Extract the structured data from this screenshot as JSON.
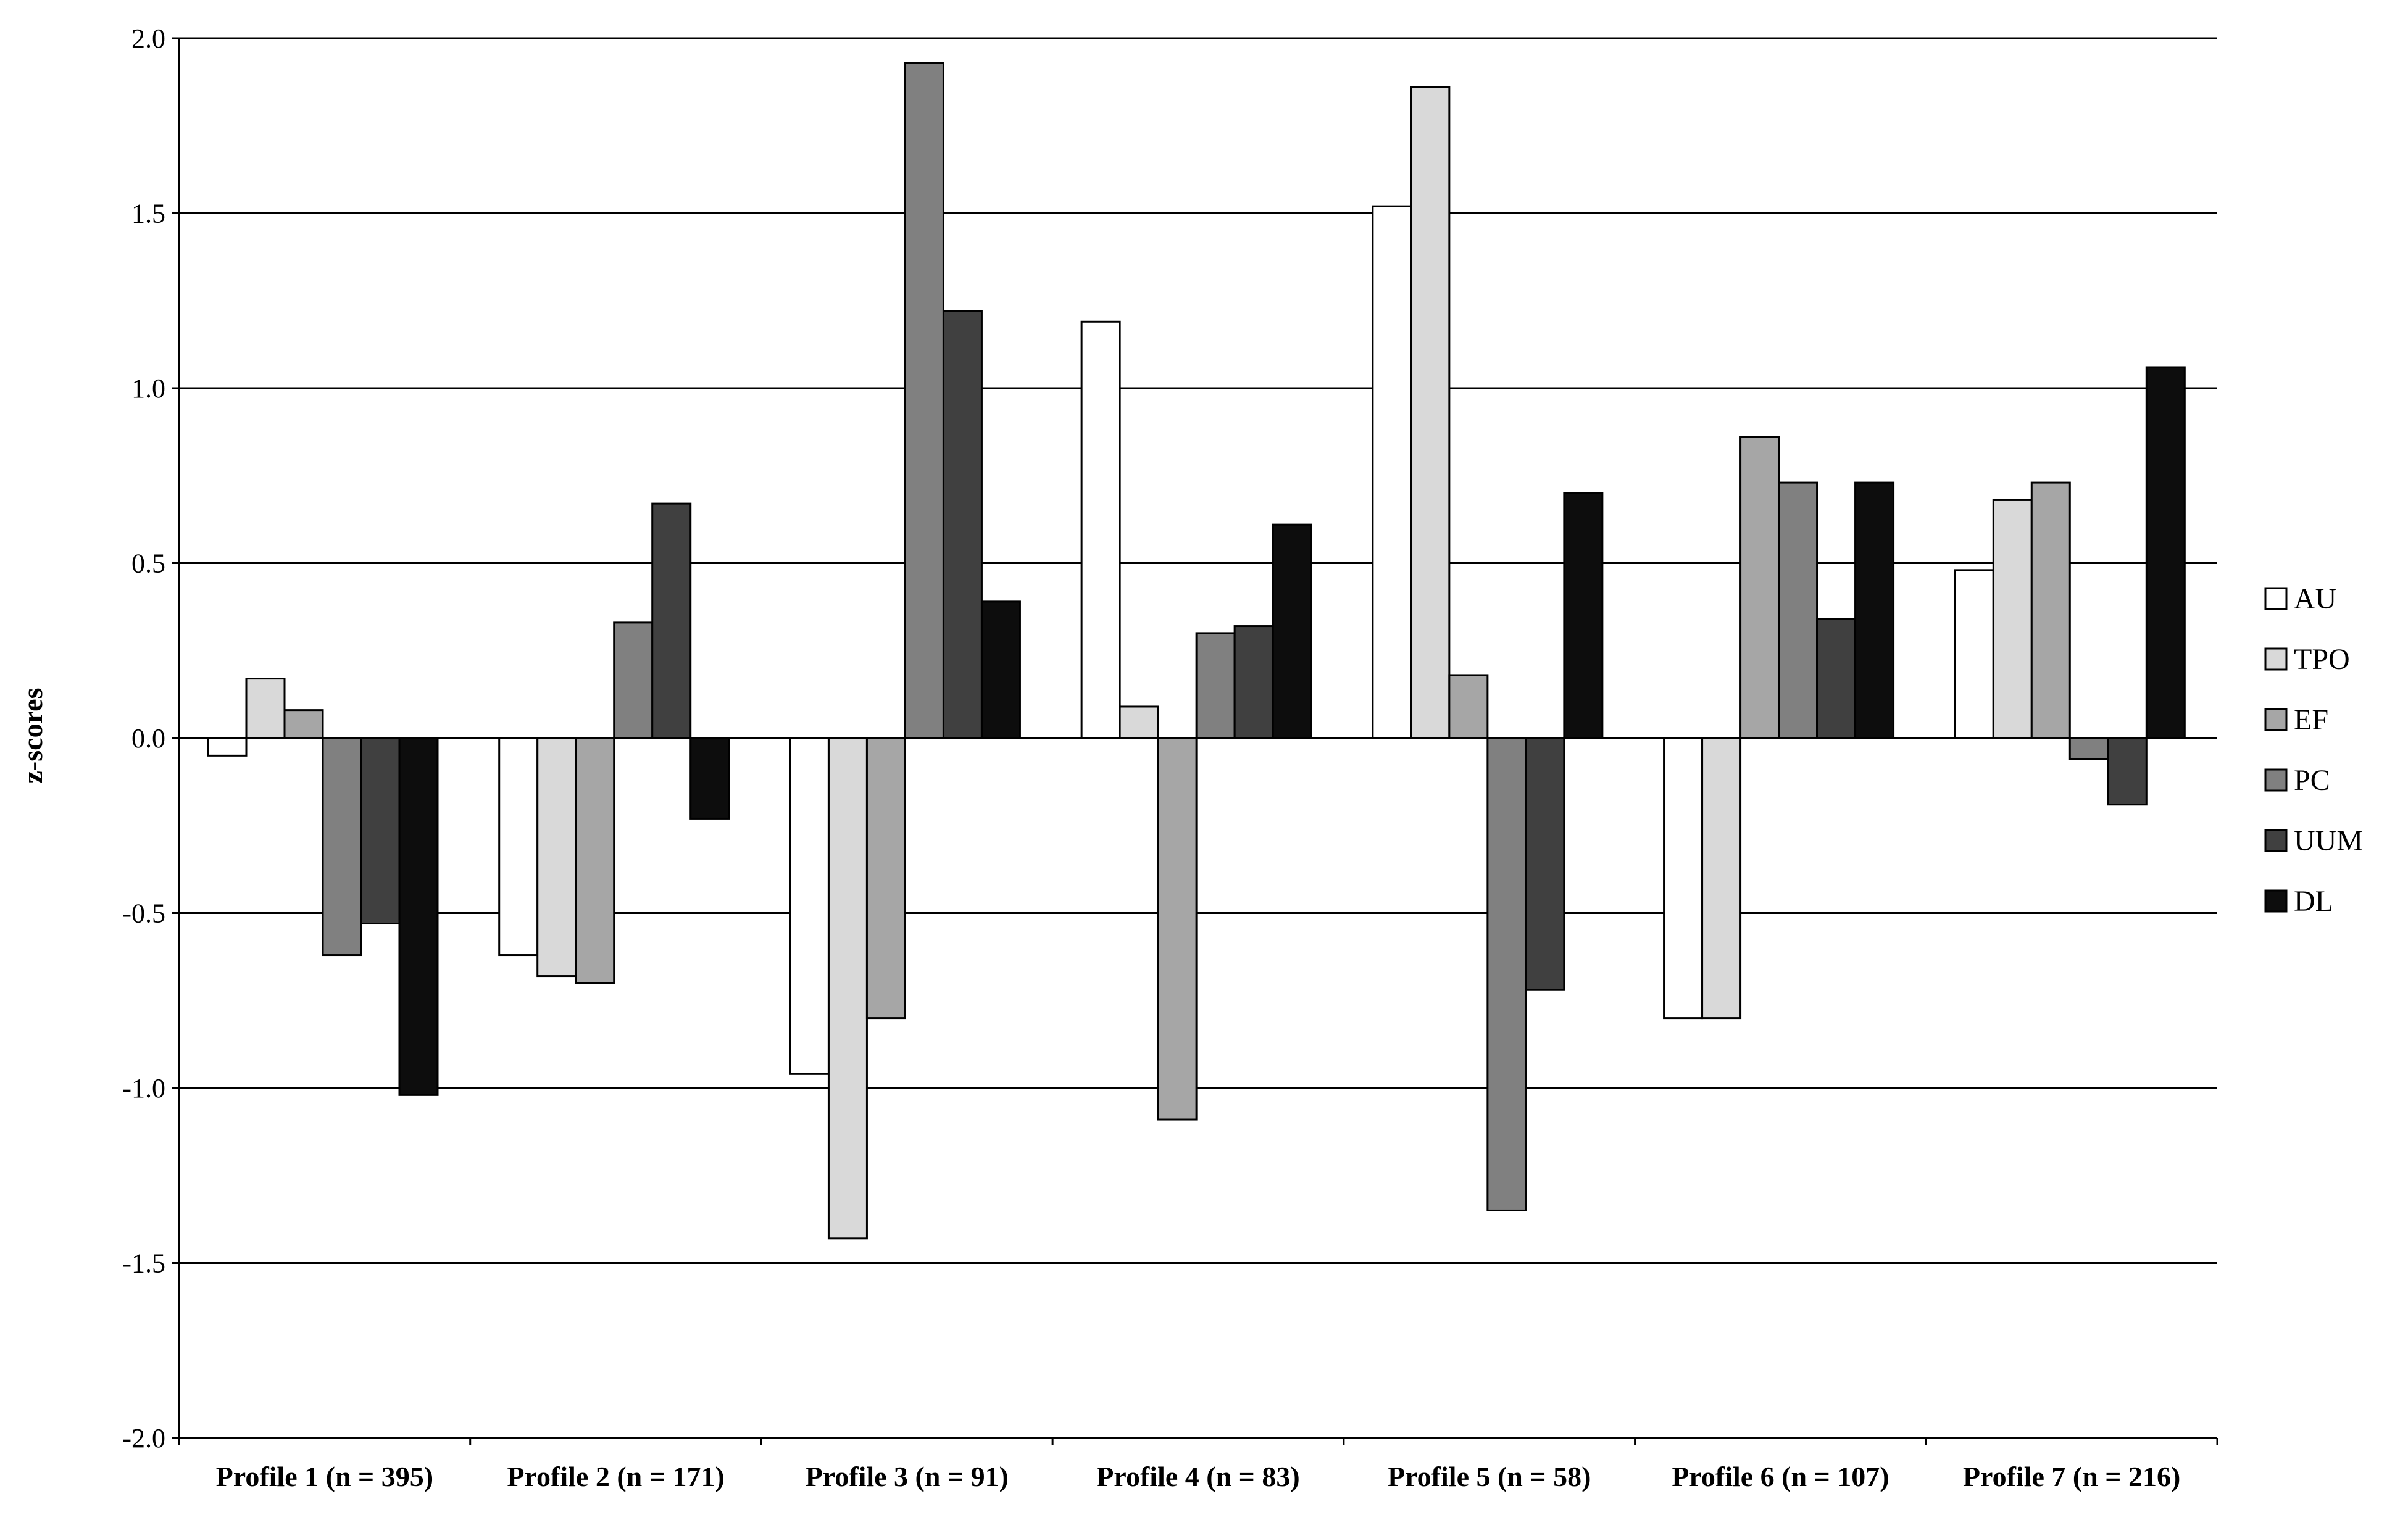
{
  "chart_data": {
    "type": "bar",
    "title": "",
    "xlabel": "",
    "ylabel": "z-scores",
    "ylim": [
      -2.0,
      2.0
    ],
    "yticks": [
      "2.0",
      "1.5",
      "1.0",
      "0.5",
      "0.0",
      "-0.5",
      "-1.0",
      "-1.5",
      "-2.0"
    ],
    "ytick_values": [
      2.0,
      1.5,
      1.0,
      0.5,
      0.0,
      -0.5,
      -1.0,
      -1.5,
      -2.0
    ],
    "grid": true,
    "legend_position": "right",
    "categories": [
      "Profile 1 (n = 395)",
      "Profile 2 (n = 171)",
      "Profile 3 (n = 91)",
      "Profile 4 (n = 83)",
      "Profile 5 (n = 58)",
      "Profile 6 (n = 107)",
      "Profile 7 (n = 216)"
    ],
    "series": [
      {
        "name": "AU",
        "color": "#ffffff",
        "values": [
          -0.05,
          -0.62,
          -0.96,
          1.19,
          1.52,
          -0.8,
          0.48
        ]
      },
      {
        "name": "TPO",
        "color": "#d9d9d9",
        "values": [
          0.17,
          -0.68,
          -1.43,
          0.09,
          1.86,
          -0.8,
          0.68
        ]
      },
      {
        "name": "EF",
        "color": "#a6a6a6",
        "values": [
          0.08,
          -0.7,
          -0.8,
          -1.09,
          0.18,
          0.86,
          0.73
        ]
      },
      {
        "name": "PC",
        "color": "#808080",
        "values": [
          -0.62,
          0.33,
          1.93,
          0.3,
          -1.35,
          0.73,
          -0.06
        ]
      },
      {
        "name": "UUM",
        "color": "#404040",
        "values": [
          -0.53,
          0.67,
          1.22,
          0.32,
          -0.72,
          0.34,
          -0.19
        ]
      },
      {
        "name": "DL",
        "color": "#0d0d0d",
        "values": [
          -1.02,
          -0.23,
          0.39,
          0.61,
          0.7,
          0.73,
          1.06
        ]
      }
    ]
  }
}
